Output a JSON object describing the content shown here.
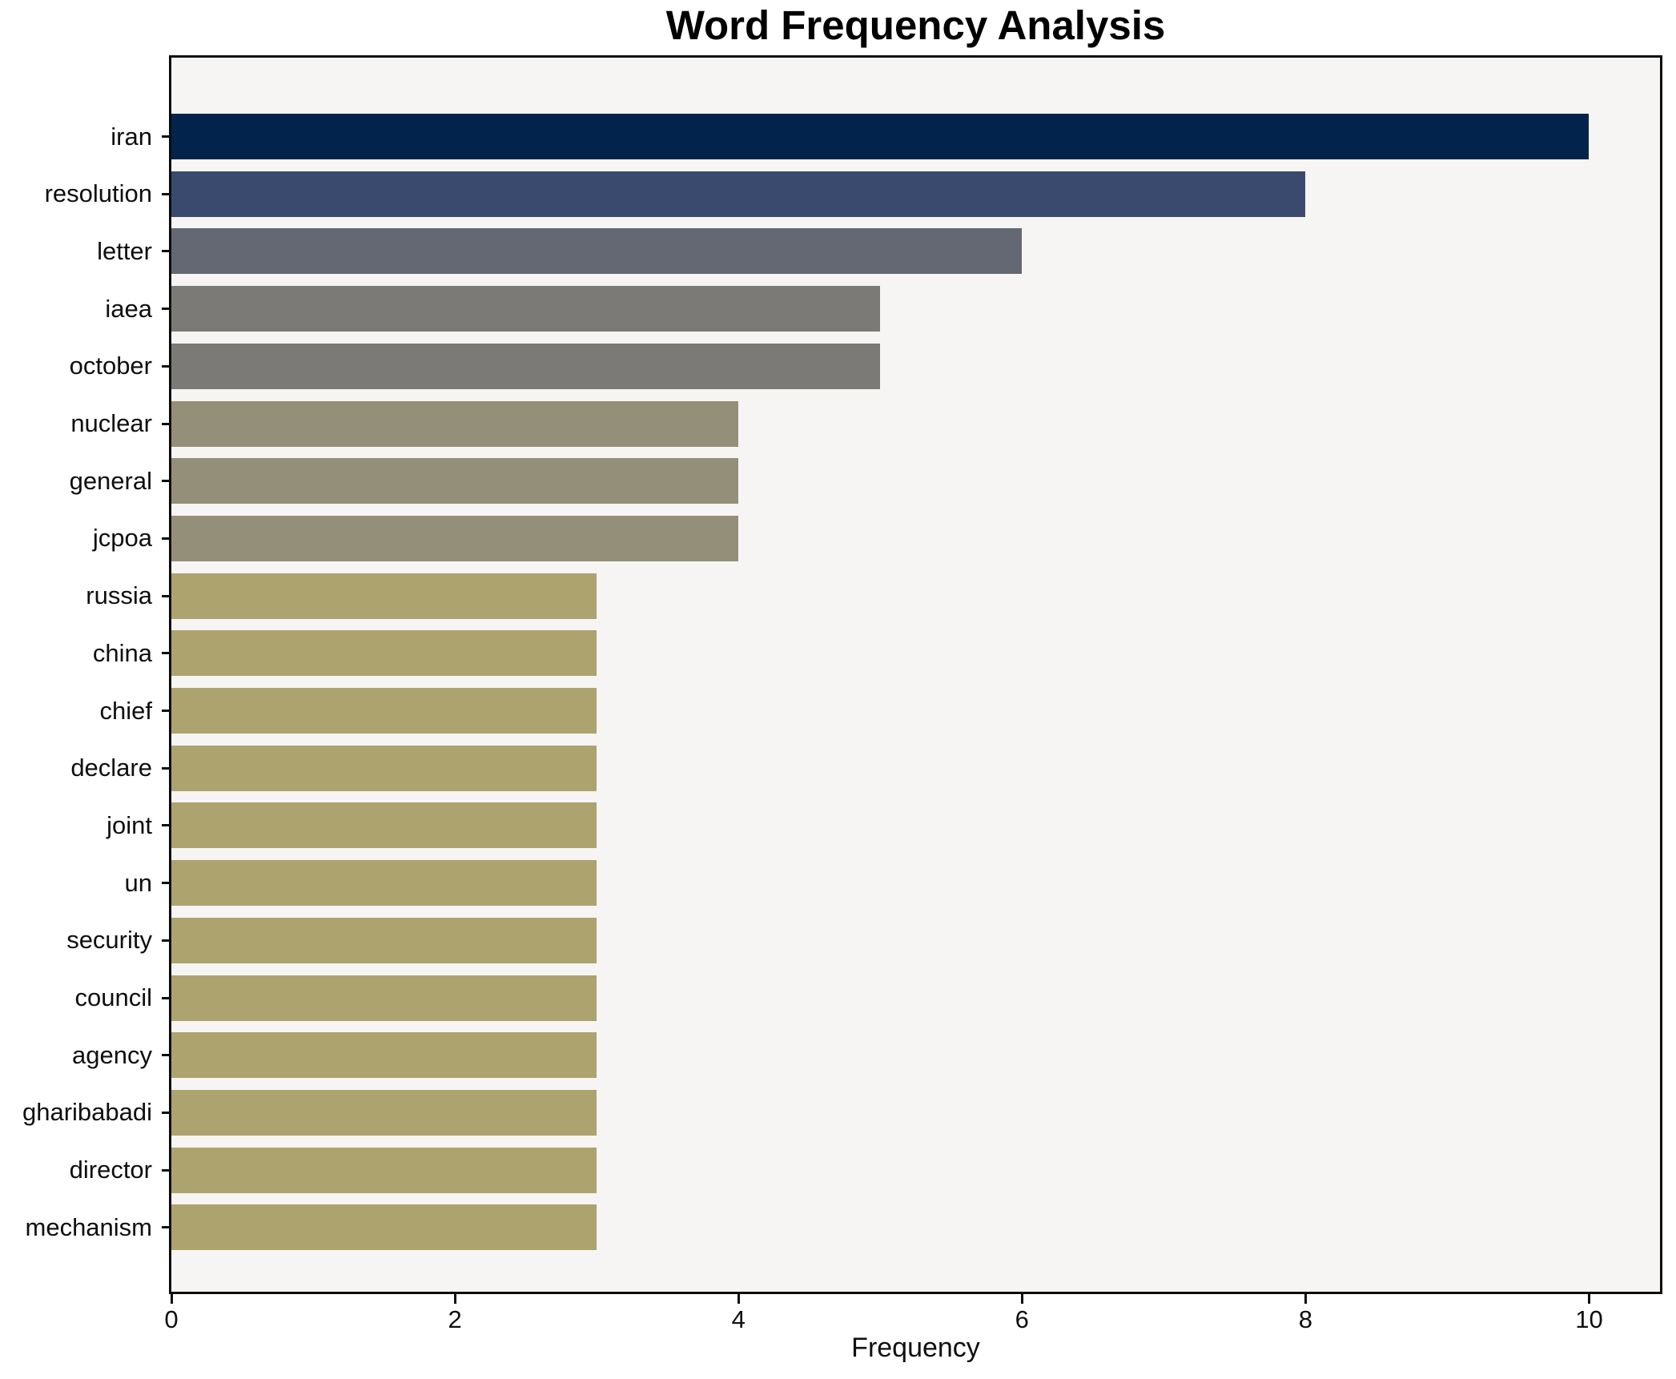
{
  "title": "Word Frequency Analysis",
  "colors": {
    "figure_background": "#ffffff",
    "plot_background": "#f6f5f3",
    "spine": "#0d0d0d",
    "text": "#0f0f0f"
  },
  "chart_data": {
    "type": "bar",
    "orientation": "horizontal",
    "title": "Word Frequency Analysis",
    "xlabel": "Frequency",
    "ylabel": "",
    "xlim": [
      0,
      10.5
    ],
    "xticks": [
      0,
      2,
      4,
      6,
      8,
      10
    ],
    "grid": false,
    "legend": null,
    "categories": [
      "iran",
      "resolution",
      "letter",
      "iaea",
      "october",
      "nuclear",
      "general",
      "jcpoa",
      "russia",
      "china",
      "chief",
      "declare",
      "joint",
      "un",
      "security",
      "council",
      "agency",
      "gharibabadi",
      "director",
      "mechanism"
    ],
    "values": [
      10,
      8,
      6,
      5,
      5,
      4,
      4,
      4,
      3,
      3,
      3,
      3,
      3,
      3,
      3,
      3,
      3,
      3,
      3,
      3
    ],
    "bar_colors": [
      "#02234c",
      "#3a4a6e",
      "#636872",
      "#7b7a76",
      "#7b7a76",
      "#948f78",
      "#948f78",
      "#948f78",
      "#aca36f",
      "#aca36f",
      "#aca36f",
      "#aca36f",
      "#aca36f",
      "#aca36f",
      "#aca36f",
      "#aca36f",
      "#aca36f",
      "#aca36f",
      "#aca36f",
      "#aca36f"
    ]
  }
}
